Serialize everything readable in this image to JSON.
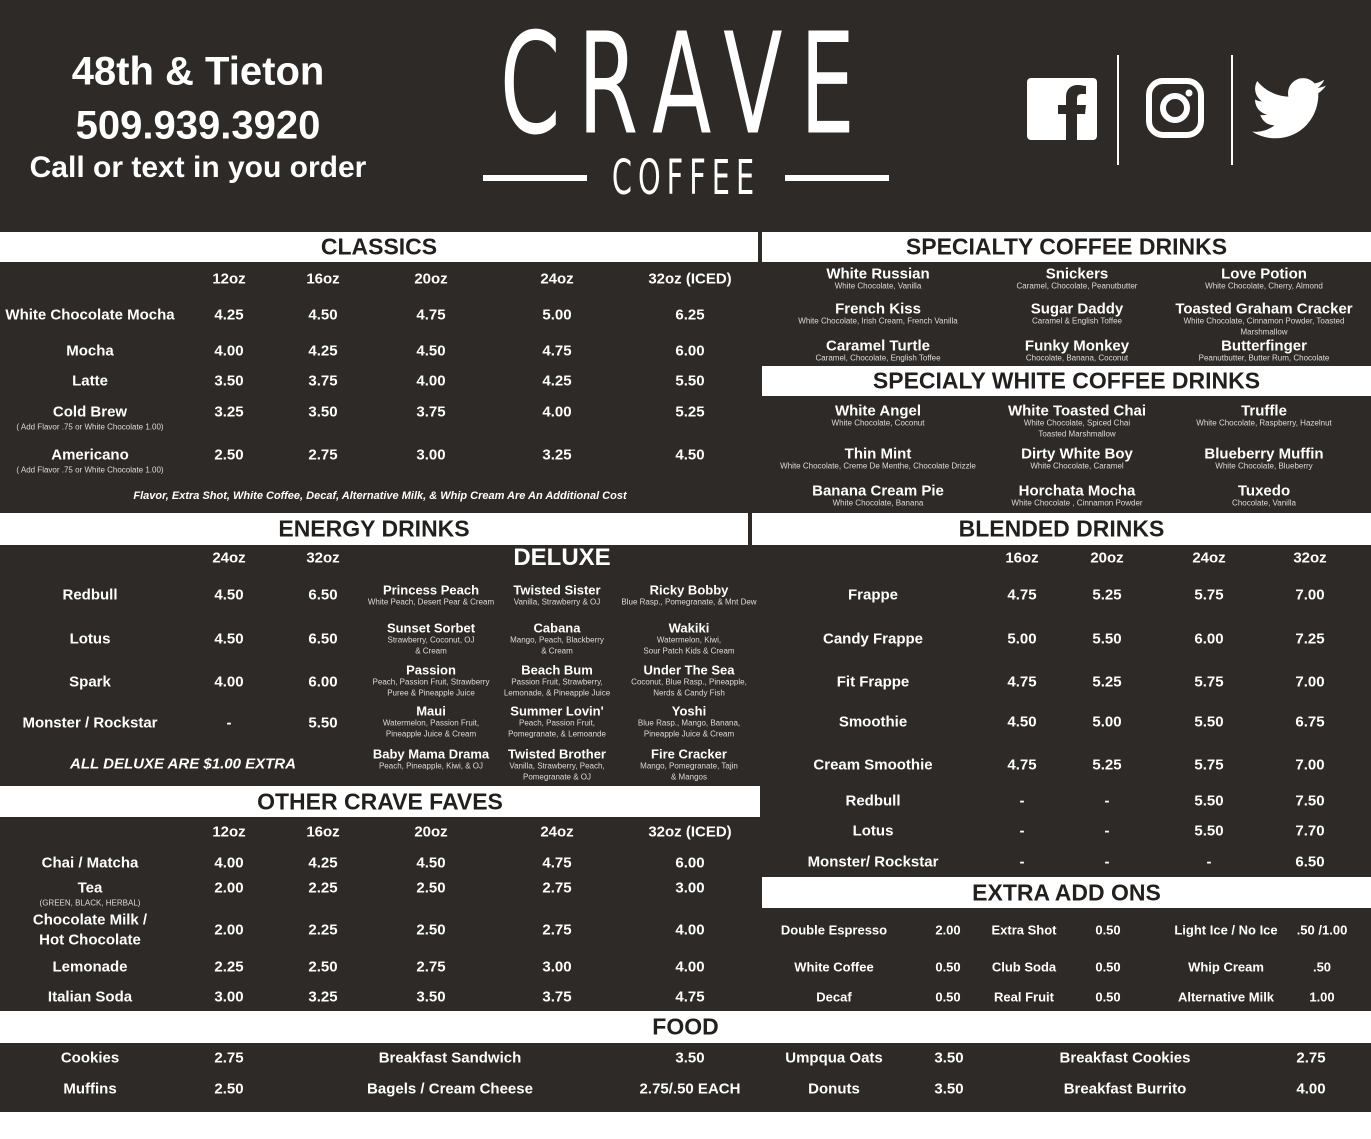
{
  "header": {
    "location": "48th & Tieton",
    "phone": "509.939.3920",
    "call_text": "Call or text in you order",
    "logo_main": "CRAVE",
    "logo_sub": "COFFEE",
    "social_icons": [
      "facebook-icon",
      "instagram-icon",
      "twitter-icon"
    ]
  },
  "colors": {
    "background": "#2e2a27",
    "section_bar": "#ffffff",
    "section_text": "#231f1d"
  },
  "classics": {
    "title": "CLASSICS",
    "sizes": [
      "12oz",
      "16oz",
      "20oz",
      "24oz",
      "32oz (ICED)"
    ],
    "rows": [
      {
        "name": "White Chocolate Mocha",
        "prices": [
          "4.25",
          "4.50",
          "4.75",
          "5.00",
          "6.25"
        ]
      },
      {
        "name": "Mocha",
        "prices": [
          "4.00",
          "4.25",
          "4.50",
          "4.75",
          "6.00"
        ]
      },
      {
        "name": "Latte",
        "prices": [
          "3.50",
          "3.75",
          "4.00",
          "4.25",
          "5.50"
        ]
      },
      {
        "name": "Cold Brew",
        "note": "( Add Flavor .75 or White Chocolate 1.00)",
        "prices": [
          "3.25",
          "3.50",
          "3.75",
          "4.00",
          "5.25"
        ]
      },
      {
        "name": "Americano",
        "note": "( Add Flavor .75 or White Chocolate 1.00)",
        "prices": [
          "2.50",
          "2.75",
          "3.00",
          "3.25",
          "4.50"
        ]
      }
    ],
    "footnote": "Flavor, Extra Shot, White Coffee, Decaf, Alternative Milk,  & Whip Cream Are An Additional Cost"
  },
  "specialty": {
    "title": "SPECIALTY COFFEE DRINKS",
    "items": [
      {
        "name": "White Russian",
        "desc": [
          "White Chocolate, Vanilla"
        ]
      },
      {
        "name": "Snickers",
        "desc": [
          "Caramel, Chocolate, Peanutbutter"
        ]
      },
      {
        "name": "Love Potion",
        "desc": [
          "White Chocolate, Cherry, Almond"
        ]
      },
      {
        "name": "French Kiss",
        "desc": [
          "White Chocolate, Irish Cream, French Vanilla"
        ]
      },
      {
        "name": "Sugar Daddy",
        "desc": [
          "Caramel & English Toffee"
        ]
      },
      {
        "name": "Toasted Graham Cracker",
        "desc": [
          "White Chocolate, Cinnamon Powder, Toasted",
          "Marshmallow"
        ]
      },
      {
        "name": "Caramel Turtle",
        "desc": [
          "Caramel, Chocolate, English Toffee"
        ]
      },
      {
        "name": "Funky Monkey",
        "desc": [
          "Chocolate, Banana, Coconut"
        ]
      },
      {
        "name": "Butterfinger",
        "desc": [
          "Peanutbutter, Butter Rum, Chocolate"
        ]
      }
    ]
  },
  "white_coffee": {
    "title": "SPECIALY WHITE COFFEE DRINKS",
    "items": [
      {
        "name": "White Angel",
        "desc": [
          "White Chocolate, Coconut"
        ]
      },
      {
        "name": "White Toasted Chai",
        "desc": [
          "White Chocolate, Spiced Chai",
          "Toasted Marshmallow"
        ]
      },
      {
        "name": "Truffle",
        "desc": [
          "White Chocolate, Raspberry, Hazelnut"
        ]
      },
      {
        "name": "Thin Mint",
        "desc": [
          "White Chocolate, Creme De Menthe, Chocolate Drizzle"
        ]
      },
      {
        "name": "Dirty White Boy",
        "desc": [
          "White Chocolate, Caramel"
        ]
      },
      {
        "name": "Blueberry Muffin",
        "desc": [
          "White Chocolate, Blueberry"
        ]
      },
      {
        "name": "Banana Cream Pie",
        "desc": [
          "White Chocolate, Banana"
        ]
      },
      {
        "name": "Horchata  Mocha",
        "desc": [
          "White Chocolate , Cinnamon Powder"
        ]
      },
      {
        "name": "Tuxedo",
        "desc": [
          "Chocolate, Vanilla"
        ]
      }
    ]
  },
  "energy": {
    "title": "ENERGY DRINKS",
    "sizes": [
      "24oz",
      "32oz"
    ],
    "rows": [
      {
        "name": "Redbull",
        "prices": [
          "4.50",
          "6.50"
        ]
      },
      {
        "name": "Lotus",
        "prices": [
          "4.50",
          "6.50"
        ]
      },
      {
        "name": "Spark",
        "prices": [
          "4.00",
          "6.00"
        ]
      },
      {
        "name": "Monster / Rockstar",
        "prices": [
          "-",
          "5.50"
        ]
      }
    ],
    "footnote": "ALL DELUXE ARE $1.00 EXTRA"
  },
  "deluxe": {
    "title": "DELUXE",
    "items": [
      {
        "name": "Princess Peach",
        "desc": [
          "White Peach, Desert Pear & Cream"
        ]
      },
      {
        "name": "Twisted Sister",
        "desc": [
          "Vanilla, Strawberry & OJ"
        ]
      },
      {
        "name": "Ricky Bobby",
        "desc": [
          "Blue Rasp., Pomegranate, & Mnt Dew"
        ]
      },
      {
        "name": "Sunset Sorbet",
        "desc": [
          "Strawberry, Coconut, OJ",
          "& Cream"
        ]
      },
      {
        "name": "Cabana",
        "desc": [
          "Mango, Peach, Blackberry",
          "& Cream"
        ]
      },
      {
        "name": "Wakiki",
        "desc": [
          "Watermelon, Kiwi,",
          "Sour Patch Kids & Cream"
        ]
      },
      {
        "name": "Passion",
        "desc": [
          "Peach, Passion Fruit, Strawberry",
          "Puree & Pineapple Juice"
        ]
      },
      {
        "name": "Beach Bum",
        "desc": [
          "Passion Fruit, Strawberry,",
          "Lemonade, & Pineapple Juice"
        ]
      },
      {
        "name": "Under The Sea",
        "desc": [
          "Coconut, Blue Rasp., Pineapple,",
          "Nerds & Candy Fish"
        ]
      },
      {
        "name": "Maui",
        "desc": [
          "Watermelon, Passion Fruit,",
          "Pineapple Juice & Cream"
        ]
      },
      {
        "name": "Summer Lovin'",
        "desc": [
          "Peach, Passion Fruit,",
          "Pomegranate, & Lemoande"
        ]
      },
      {
        "name": "Yoshi",
        "desc": [
          "Blue Rasp., Mango, Banana,",
          "Pineapple Juice & Cream"
        ]
      },
      {
        "name": "Baby Mama Drama",
        "desc": [
          "Peach, Pineapple, Kiwi, & OJ"
        ]
      },
      {
        "name": "Twisted Brother",
        "desc": [
          "Vanilla, Strawberry, Peach,",
          "Pomegranate & OJ"
        ]
      },
      {
        "name": "Fire Cracker",
        "desc": [
          "Mango, Pomegranate, Tajin",
          "& Mangos"
        ]
      }
    ]
  },
  "blended": {
    "title": "BLENDED DRINKS",
    "sizes": [
      "16oz",
      "20oz",
      "24oz",
      "32oz"
    ],
    "rows": [
      {
        "name": "Frappe",
        "prices": [
          "4.75",
          "5.25",
          "5.75",
          "7.00"
        ]
      },
      {
        "name": "Candy Frappe",
        "prices": [
          "5.00",
          "5.50",
          "6.00",
          "7.25"
        ]
      },
      {
        "name": "Fit Frappe",
        "prices": [
          "4.75",
          "5.25",
          "5.75",
          "7.00"
        ]
      },
      {
        "name": "Smoothie",
        "prices": [
          "4.50",
          "5.00",
          "5.50",
          "6.75"
        ]
      },
      {
        "name": "Cream Smoothie",
        "prices": [
          "4.75",
          "5.25",
          "5.75",
          "7.00"
        ]
      },
      {
        "name": "Redbull",
        "prices": [
          "-",
          "-",
          "5.50",
          "7.50"
        ]
      },
      {
        "name": "Lotus",
        "prices": [
          "-",
          "-",
          "5.50",
          "7.70"
        ]
      },
      {
        "name": "Monster/ Rockstar",
        "prices": [
          "-",
          "-",
          "-",
          "6.50"
        ]
      }
    ]
  },
  "faves": {
    "title": "OTHER CRAVE FAVES",
    "sizes": [
      "12oz",
      "16oz",
      "20oz",
      "24oz",
      "32oz (ICED)"
    ],
    "rows": [
      {
        "name": "Chai / Matcha",
        "prices": [
          "4.00",
          "4.25",
          "4.50",
          "4.75",
          "6.00"
        ]
      },
      {
        "name": "Tea",
        "note": "(GREEN, BLACK, HERBAL)",
        "prices": [
          "2.00",
          "2.25",
          "2.50",
          "2.75",
          "3.00"
        ]
      },
      {
        "name": "Chocolate Milk  /",
        "name2": "Hot Chocolate",
        "prices": [
          "2.00",
          "2.25",
          "2.50",
          "2.75",
          "4.00"
        ]
      },
      {
        "name": "Lemonade",
        "prices": [
          "2.25",
          "2.50",
          "2.75",
          "3.00",
          "4.00"
        ]
      },
      {
        "name": "Italian Soda",
        "prices": [
          "3.00",
          "3.25",
          "3.50",
          "3.75",
          "4.75"
        ]
      }
    ]
  },
  "addons": {
    "title": "EXTRA ADD ONS",
    "rows": [
      [
        {
          "name": "Double Espresso",
          "price": "2.00"
        },
        {
          "name": "Extra Shot",
          "price": "0.50"
        },
        {
          "name": "Light Ice / No Ice",
          "price": ".50 /1.00"
        }
      ],
      [
        {
          "name": "White Coffee",
          "price": "0.50"
        },
        {
          "name": "Club Soda",
          "price": "0.50"
        },
        {
          "name": "Whip Cream",
          "price": ".50"
        }
      ],
      [
        {
          "name": "Decaf",
          "price": "0.50"
        },
        {
          "name": "Real Fruit",
          "price": "0.50"
        },
        {
          "name": "Alternative Milk",
          "price": "1.00"
        }
      ]
    ]
  },
  "food": {
    "title": "FOOD",
    "rows": [
      [
        {
          "name": "Cookies",
          "price": "2.75"
        },
        {
          "name": "Breakfast Sandwich",
          "price": "3.50"
        },
        {
          "name": "Umpqua Oats",
          "price": "3.50"
        },
        {
          "name": "Breakfast Cookies",
          "price": "2.75"
        }
      ],
      [
        {
          "name": "Muffins",
          "price": "2.50"
        },
        {
          "name": "Bagels / Cream Cheese",
          "price": "2.75/.50 EACH"
        },
        {
          "name": "Donuts",
          "price": "3.50"
        },
        {
          "name": "Breakfast Burrito",
          "price": "4.00"
        }
      ]
    ]
  }
}
